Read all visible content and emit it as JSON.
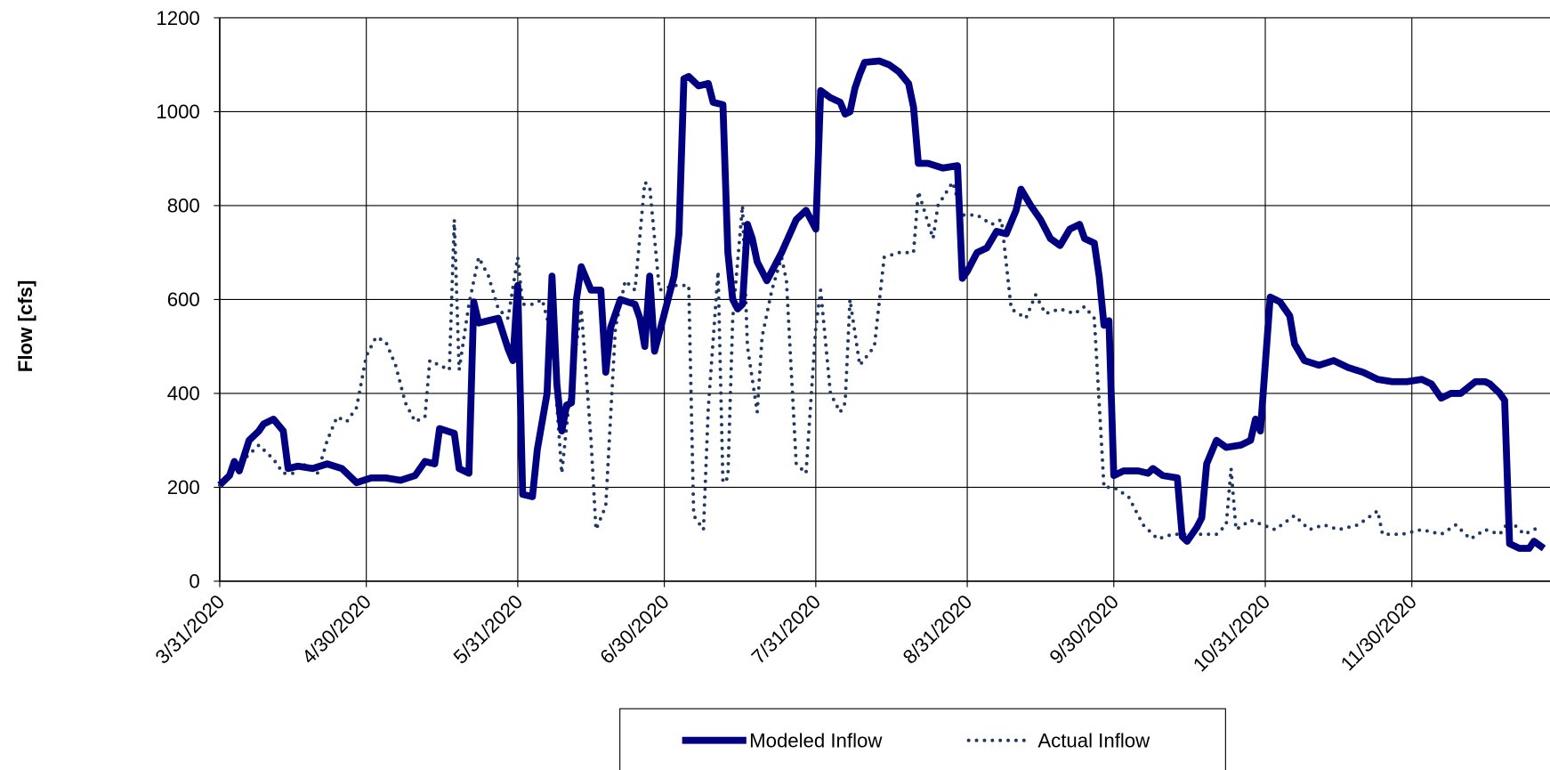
{
  "chart_data": {
    "type": "line",
    "ylabel": "Flow [cfs]",
    "ylim": [
      0,
      1200
    ],
    "yticks": [
      0,
      200,
      400,
      600,
      800,
      1000,
      1200
    ],
    "xlim": [
      "3/31/2020",
      "12/31/2020"
    ],
    "xticks": [
      "3/31/2020",
      "4/30/2020",
      "5/31/2020",
      "6/30/2020",
      "7/31/2020",
      "8/31/2020",
      "9/30/2020",
      "10/31/2020",
      "11/30/2020"
    ],
    "grid": true,
    "legend": "bottom",
    "series": [
      {
        "name": "Modeled Inflow",
        "color": "#000080",
        "style": "solid",
        "x": [
          "3/31/2020",
          "4/2/2020",
          "4/3/2020",
          "4/4/2020",
          "4/6/2020",
          "4/8/2020",
          "4/9/2020",
          "4/11/2020",
          "4/13/2020",
          "4/14/2020",
          "4/16/2020",
          "4/19/2020",
          "4/22/2020",
          "4/25/2020",
          "4/28/2020",
          "5/1/2020",
          "5/4/2020",
          "5/7/2020",
          "5/10/2020",
          "5/12/2020",
          "5/14/2020",
          "5/15/2020",
          "5/18/2020",
          "5/19/2020",
          "5/21/2020",
          "5/22/2020",
          "5/23/2020",
          "5/25/2020",
          "5/27/2020",
          "5/29/2020",
          "5/30/2020",
          "5/31/2020",
          "6/1/2020",
          "6/3/2020",
          "6/4/2020",
          "6/6/2020",
          "6/7/2020",
          "6/8/2020",
          "6/9/2020",
          "6/10/2020",
          "6/11/2020",
          "6/12/2020",
          "6/13/2020",
          "6/15/2020",
          "6/17/2020",
          "6/18/2020",
          "6/19/2020",
          "6/21/2020",
          "6/24/2020",
          "6/25/2020",
          "6/26/2020",
          "6/27/2020",
          "6/28/2020",
          "6/30/2020",
          "7/2/2020",
          "7/3/2020",
          "7/4/2020",
          "7/5/2020",
          "7/7/2020",
          "7/9/2020",
          "7/10/2020",
          "7/12/2020",
          "7/13/2020",
          "7/14/2020",
          "7/15/2020",
          "7/16/2020",
          "7/17/2020",
          "7/18/2020",
          "7/19/2020",
          "7/21/2020",
          "7/24/2020",
          "7/27/2020",
          "7/29/2020",
          "7/30/2020",
          "7/31/2020",
          "8/1/2020",
          "8/3/2020",
          "8/5/2020",
          "8/6/2020",
          "8/7/2020",
          "8/8/2020",
          "8/9/2020",
          "8/10/2020",
          "8/13/2020",
          "8/15/2020",
          "8/17/2020",
          "8/19/2020",
          "8/20/2020",
          "8/21/2020",
          "8/23/2020",
          "8/26/2020",
          "8/29/2020",
          "8/30/2020",
          "8/31/2020",
          "9/2/2020",
          "9/4/2020",
          "9/6/2020",
          "9/8/2020",
          "9/10/2020",
          "9/11/2020",
          "9/13/2020",
          "9/15/2020",
          "9/17/2020",
          "9/19/2020",
          "9/21/2020",
          "9/23/2020",
          "9/24/2020",
          "9/26/2020",
          "9/27/2020",
          "9/28/2020",
          "9/29/2020",
          "9/30/2020",
          "10/2/2020",
          "10/5/2020",
          "10/7/2020",
          "10/8/2020",
          "10/10/2020",
          "10/13/2020",
          "10/14/2020",
          "10/15/2020",
          "10/17/2020",
          "10/18/2020",
          "10/19/2020",
          "10/21/2020",
          "10/23/2020",
          "10/26/2020",
          "10/28/2020",
          "10/29/2020",
          "10/30/2020",
          "11/1/2020",
          "11/3/2020",
          "11/5/2020",
          "11/6/2020",
          "11/8/2020",
          "11/11/2020",
          "11/14/2020",
          "11/17/2020",
          "11/20/2020",
          "11/23/2020",
          "11/26/2020",
          "11/29/2020",
          "12/2/2020",
          "12/4/2020",
          "12/6/2020",
          "12/8/2020",
          "12/10/2020",
          "12/13/2020",
          "12/15/2020",
          "12/16/2020",
          "12/18/2020",
          "12/19/2020",
          "12/20/2020",
          "12/22/2020",
          "12/24/2020",
          "12/25/2020",
          "12/27/2020"
        ],
        "values": [
          205,
          225,
          255,
          235,
          300,
          320,
          335,
          345,
          320,
          240,
          245,
          240,
          250,
          240,
          210,
          220,
          220,
          215,
          225,
          255,
          250,
          325,
          315,
          240,
          230,
          595,
          550,
          555,
          560,
          495,
          470,
          630,
          185,
          180,
          280,
          400,
          650,
          420,
          320,
          375,
          380,
          600,
          670,
          620,
          620,
          445,
          540,
          600,
          590,
          560,
          500,
          650,
          490,
          570,
          650,
          740,
          1070,
          1075,
          1055,
          1060,
          1020,
          1015,
          700,
          600,
          580,
          590,
          760,
          730,
          680,
          640,
          700,
          770,
          790,
          770,
          750,
          1045,
          1030,
          1020,
          995,
          1000,
          1050,
          1080,
          1105,
          1108,
          1100,
          1085,
          1060,
          1010,
          890,
          890,
          880,
          885,
          645,
          660,
          700,
          710,
          745,
          740,
          790,
          835,
          800,
          770,
          730,
          715,
          750,
          760,
          730,
          720,
          650,
          545,
          555,
          225,
          235,
          235,
          230,
          240,
          225,
          220,
          95,
          85,
          115,
          135,
          250,
          300,
          285,
          290,
          300,
          345,
          320,
          605,
          595,
          565,
          505,
          470,
          460,
          470,
          455,
          445,
          430,
          425,
          425,
          430,
          420,
          390,
          400,
          400,
          425,
          425,
          420,
          400,
          385,
          80,
          70,
          70,
          85,
          70
        ]
      },
      {
        "name": "Actual Inflow",
        "color": "#1f3864",
        "style": "dotted",
        "x": [
          "3/31/2020",
          "4/3/2020",
          "4/6/2020",
          "4/8/2020",
          "4/11/2020",
          "4/13/2020",
          "4/15/2020",
          "4/17/2020",
          "4/20/2020",
          "4/22/2020",
          "4/24/2020",
          "4/26/2020",
          "4/28/2020",
          "4/30/2020",
          "5/2/2020",
          "5/4/2020",
          "5/6/2020",
          "5/8/2020",
          "5/10/2020",
          "5/12/2020",
          "5/13/2020",
          "5/15/2020",
          "5/17/2020",
          "5/18/2020",
          "5/19/2020",
          "5/21/2020",
          "5/23/2020",
          "5/25/2020",
          "5/27/2020",
          "5/29/2020",
          "5/31/2020",
          "6/1/2020",
          "6/3/2020",
          "6/5/2020",
          "6/7/2020",
          "6/9/2020",
          "6/11/2020",
          "6/13/2020",
          "6/15/2020",
          "6/16/2020",
          "6/18/2020",
          "6/20/2020",
          "6/22/2020",
          "6/24/2020",
          "6/26/2020",
          "6/27/2020",
          "6/29/2020",
          "7/2/2020",
          "7/5/2020",
          "7/6/2020",
          "7/8/2020",
          "7/9/2020",
          "7/11/2020",
          "7/12/2020",
          "7/13/2020",
          "7/14/2020",
          "7/16/2020",
          "7/17/2020",
          "7/19/2020",
          "7/20/2020",
          "7/22/2020",
          "7/24/2020",
          "7/25/2020",
          "7/27/2020",
          "7/29/2020",
          "7/31/2020",
          "8/1/2020",
          "8/3/2020",
          "8/5/2020",
          "8/6/2020",
          "8/7/2020",
          "8/9/2020",
          "8/12/2020",
          "8/14/2020",
          "8/17/2020",
          "8/20/2020",
          "8/21/2020",
          "8/24/2020",
          "8/25/2020",
          "8/28/2020",
          "8/30/2020",
          "9/2/2020",
          "9/5/2020",
          "9/7/2020",
          "9/9/2020",
          "9/12/2020",
          "9/14/2020",
          "9/16/2020",
          "9/19/2020",
          "9/22/2020",
          "9/24/2020",
          "9/26/2020",
          "9/28/2020",
          "9/30/2020",
          "10/3/2020",
          "10/6/2020",
          "10/9/2020",
          "10/12/2020",
          "10/17/2020",
          "10/21/2020",
          "10/23/2020",
          "10/24/2020",
          "10/25/2020",
          "10/28/2020",
          "11/2/2020",
          "11/6/2020",
          "11/9/2020",
          "11/12/2020",
          "11/15/2020",
          "11/19/2020",
          "11/23/2020",
          "11/24/2020",
          "11/28/2020",
          "12/2/2020",
          "12/6/2020",
          "12/9/2020",
          "12/12/2020",
          "12/15/2020",
          "12/18/2020",
          "12/20/2020",
          "12/23/2020",
          "12/26/2020"
        ],
        "values": [
          205,
          240,
          270,
          290,
          260,
          230,
          230,
          250,
          230,
          300,
          350,
          340,
          370,
          480,
          520,
          510,
          460,
          380,
          340,
          350,
          470,
          460,
          450,
          770,
          450,
          590,
          690,
          650,
          580,
          560,
          690,
          590,
          590,
          600,
          520,
          230,
          430,
          580,
          300,
          110,
          160,
          540,
          640,
          620,
          850,
          840,
          620,
          630,
          630,
          140,
          110,
          370,
          660,
          210,
          220,
          560,
          800,
          500,
          360,
          520,
          620,
          690,
          640,
          250,
          230,
          540,
          620,
          400,
          360,
          380,
          600,
          460,
          500,
          690,
          700,
          700,
          830,
          730,
          800,
          850,
          780,
          780,
          760,
          770,
          580,
          560,
          610,
          570,
          580,
          570,
          585,
          560,
          200,
          200,
          180,
          120,
          90,
          100,
          100,
          100,
          120,
          240,
          110,
          130,
          110,
          140,
          110,
          120,
          110,
          120,
          150,
          100,
          100,
          110,
          100,
          120,
          90,
          110,
          100,
          130,
          100,
          115
        ]
      }
    ]
  }
}
